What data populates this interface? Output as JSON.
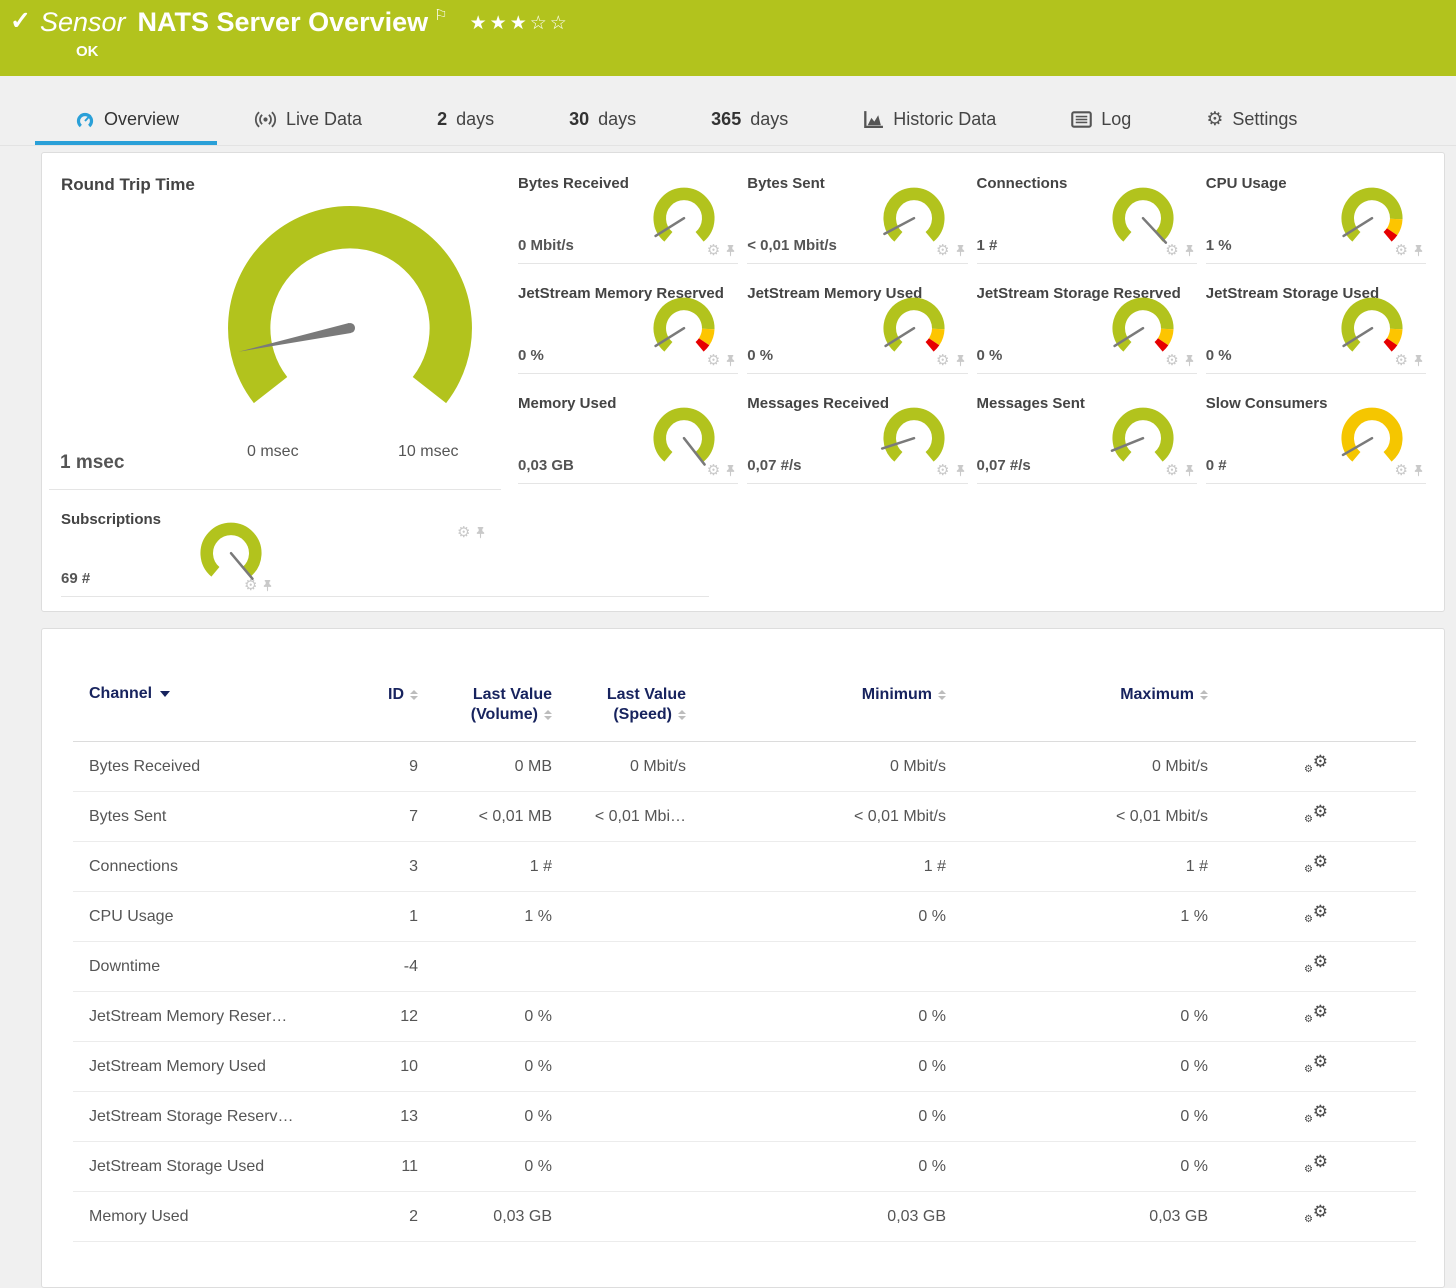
{
  "header": {
    "check_icon": "✓",
    "kind": "Sensor",
    "title": "NATS Server Overview",
    "flag_icon": "⚐",
    "status": "OK",
    "stars_filled": 3,
    "stars_total": 5
  },
  "tabs": [
    {
      "label": "Overview",
      "icon": "gauge-icon",
      "active": true
    },
    {
      "label": "Live Data",
      "icon": "live-data-icon"
    },
    {
      "num": "2",
      "label": "days"
    },
    {
      "num": "30",
      "label": "days"
    },
    {
      "num": "365",
      "label": "days"
    },
    {
      "label": "Historic Data",
      "icon": "historic-chart-icon"
    },
    {
      "label": "Log",
      "icon": "log-icon"
    },
    {
      "label": "Settings",
      "icon": "gear-icon"
    }
  ],
  "main_gauge": {
    "title": "Round Trip Time",
    "value": "1 msec",
    "min_label": "0 msec",
    "max_label": "10 msec",
    "needle_deg": -102,
    "style": "green"
  },
  "small_gauges": [
    {
      "title": "Bytes Received",
      "value": "0 Mbit/s",
      "needle_deg": -122,
      "style": "green"
    },
    {
      "title": "Bytes Sent",
      "value": "< 0,01 Mbit/s",
      "needle_deg": -118,
      "style": "green"
    },
    {
      "title": "Connections",
      "value": "1 #",
      "needle_deg": 137,
      "style": "green"
    },
    {
      "title": "CPU Usage",
      "value": "1 %",
      "needle_deg": -122,
      "style": "warn"
    },
    {
      "title": "JetStream Memory Reserved",
      "value": "0 %",
      "needle_deg": -122,
      "style": "warn"
    },
    {
      "title": "JetStream Memory Used",
      "value": "0 %",
      "needle_deg": -122,
      "style": "warn"
    },
    {
      "title": "JetStream Storage Reserved",
      "value": "0 %",
      "needle_deg": -122,
      "style": "warn"
    },
    {
      "title": "JetStream Storage Used",
      "value": "0 %",
      "needle_deg": -122,
      "style": "warn"
    },
    {
      "title": "Memory Used",
      "value": "0,03 GB",
      "needle_deg": 142,
      "style": "green"
    },
    {
      "title": "Messages Received",
      "value": "0,07 #/s",
      "needle_deg": -108,
      "style": "green"
    },
    {
      "title": "Messages Sent",
      "value": "0,07 #/s",
      "needle_deg": -112,
      "style": "green"
    },
    {
      "title": "Slow Consumers",
      "value": "0 #",
      "needle_deg": -120,
      "style": "yellow"
    },
    {
      "title": "Subscriptions",
      "value": "69 #",
      "needle_deg": 140,
      "style": "green"
    }
  ],
  "table": {
    "columns": {
      "channel": "Channel",
      "id": "ID",
      "last_volume_1": "Last Value",
      "last_volume_2": "(Volume)",
      "last_speed_1": "Last Value",
      "last_speed_2": "(Speed)",
      "min": "Minimum",
      "max": "Maximum"
    },
    "rows": [
      {
        "channel": "Bytes Received",
        "id": "9",
        "last_volume": "0 MB",
        "last_speed": "0 Mbit/s",
        "min": "0 Mbit/s",
        "max": "0 Mbit/s"
      },
      {
        "channel": "Bytes Sent",
        "id": "7",
        "last_volume": "< 0,01 MB",
        "last_speed": "< 0,01 Mbi…",
        "min": "< 0,01 Mbit/s",
        "max": "< 0,01 Mbit/s"
      },
      {
        "channel": "Connections",
        "id": "3",
        "last_volume": "1 #",
        "last_speed": "",
        "min": "1 #",
        "max": "1 #"
      },
      {
        "channel": "CPU Usage",
        "id": "1",
        "last_volume": "1 %",
        "last_speed": "",
        "min": "0 %",
        "max": "1 %"
      },
      {
        "channel": "Downtime",
        "id": "-4",
        "last_volume": "",
        "last_speed": "",
        "min": "",
        "max": ""
      },
      {
        "channel": "JetStream Memory Reser…",
        "id": "12",
        "last_volume": "0 %",
        "last_speed": "",
        "min": "0 %",
        "max": "0 %"
      },
      {
        "channel": "JetStream Memory Used",
        "id": "10",
        "last_volume": "0 %",
        "last_speed": "",
        "min": "0 %",
        "max": "0 %"
      },
      {
        "channel": "JetStream Storage Reserv…",
        "id": "13",
        "last_volume": "0 %",
        "last_speed": "",
        "min": "0 %",
        "max": "0 %"
      },
      {
        "channel": "JetStream Storage Used",
        "id": "11",
        "last_volume": "0 %",
        "last_speed": "",
        "min": "0 %",
        "max": "0 %"
      },
      {
        "channel": "Memory Used",
        "id": "2",
        "last_volume": "0,03 GB",
        "last_speed": "",
        "min": "0,03 GB",
        "max": "0,03 GB"
      }
    ]
  },
  "colors": {
    "brand_green": "#b2c31d",
    "gauge_green": "#b2c31d",
    "warn_yellow": "#fdc500",
    "alert_red": "#e60000",
    "gold": "#f5c600",
    "needle_gray": "#7a7a7a",
    "tab_blue": "#2aa0d8",
    "header_navy": "#17235e"
  }
}
